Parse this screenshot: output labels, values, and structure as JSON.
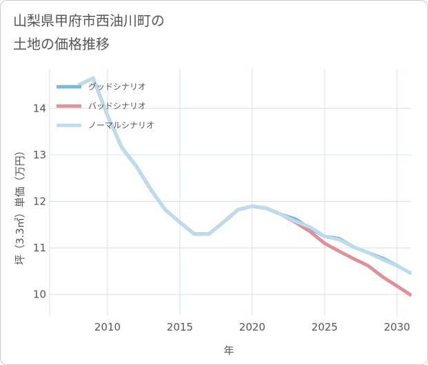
{
  "title_lines": [
    "山梨県甲府市西油川町の",
    "土地の価格推移"
  ],
  "chart_data": {
    "type": "line",
    "title": "山梨県甲府市西油川町の土地の価格推移",
    "xlabel": "年",
    "ylabel": "坪（3.3㎡）単価（万円）",
    "xlim": [
      2006,
      2031
    ],
    "ylim": [
      9.55,
      14.85
    ],
    "xticks": [
      2010,
      2015,
      2020,
      2025,
      2030
    ],
    "yticks": [
      10,
      11,
      12,
      13,
      14
    ],
    "grid": true,
    "legend_position": "top-left",
    "series": [
      {
        "name": "グッドシナリオ",
        "color": "#7ab8e0",
        "x": [
          2008,
          2009,
          2010,
          2011,
          2012,
          2013,
          2014,
          2015,
          2016,
          2017,
          2018,
          2019,
          2020,
          2021,
          2022,
          2023,
          2024,
          2025,
          2026,
          2027,
          2028,
          2029,
          2030,
          2031
        ],
        "values": [
          14.5,
          14.65,
          13.85,
          13.15,
          12.75,
          12.25,
          11.82,
          11.55,
          11.3,
          11.3,
          11.55,
          11.82,
          11.9,
          11.85,
          11.72,
          11.62,
          11.42,
          11.25,
          11.2,
          11.02,
          10.9,
          10.78,
          10.62,
          10.45
        ]
      },
      {
        "name": "バッドシナリオ",
        "color": "#e09098",
        "x": [
          2008,
          2009,
          2010,
          2011,
          2012,
          2013,
          2014,
          2015,
          2016,
          2017,
          2018,
          2019,
          2020,
          2021,
          2022,
          2023,
          2024,
          2025,
          2026,
          2027,
          2028,
          2029,
          2030,
          2031
        ],
        "values": [
          14.5,
          14.65,
          13.85,
          13.15,
          12.75,
          12.25,
          11.82,
          11.55,
          11.3,
          11.3,
          11.55,
          11.82,
          11.9,
          11.85,
          11.72,
          11.55,
          11.35,
          11.1,
          10.93,
          10.77,
          10.62,
          10.38,
          10.18,
          9.98
        ]
      },
      {
        "name": "ノーマルシナリオ",
        "color": "#bcdcec",
        "x": [
          2008,
          2009,
          2010,
          2011,
          2012,
          2013,
          2014,
          2015,
          2016,
          2017,
          2018,
          2019,
          2020,
          2021,
          2022,
          2023,
          2024,
          2025,
          2026,
          2027,
          2028,
          2029,
          2030,
          2031
        ],
        "values": [
          14.5,
          14.65,
          13.85,
          13.15,
          12.75,
          12.25,
          11.82,
          11.55,
          11.3,
          11.3,
          11.55,
          11.82,
          11.9,
          11.85,
          11.72,
          11.57,
          11.45,
          11.25,
          11.18,
          11.02,
          10.9,
          10.75,
          10.62,
          10.45
        ]
      }
    ]
  }
}
